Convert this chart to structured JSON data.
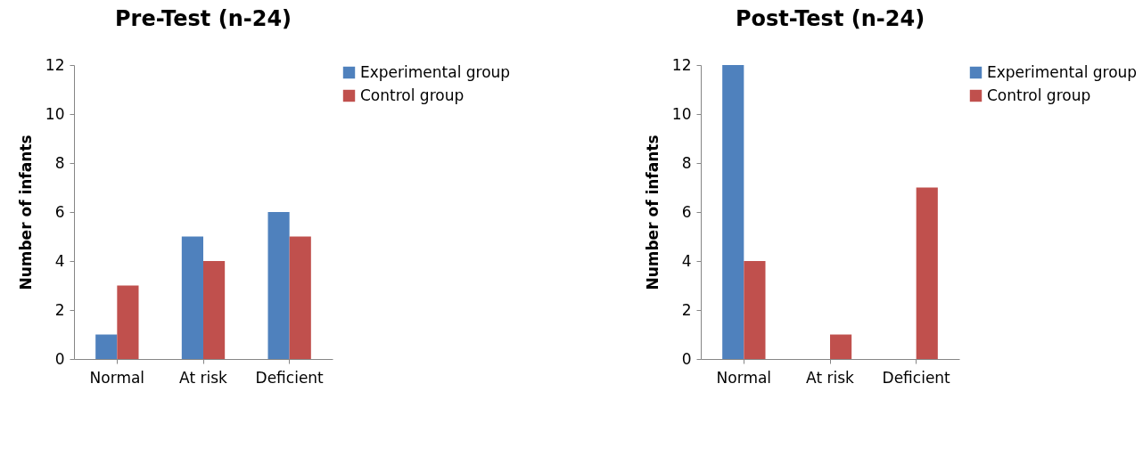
{
  "chart_data": [
    {
      "type": "bar",
      "title": "Pre-Test (n-24)",
      "ylabel": "Number of infants",
      "categories": [
        "Normal",
        "At risk",
        "Deficient"
      ],
      "series": [
        {
          "name": "Experimental group",
          "color": "#4f81bd",
          "values": [
            1,
            5,
            6
          ]
        },
        {
          "name": "Control group",
          "color": "#c0504d",
          "values": [
            3,
            4,
            5
          ]
        }
      ],
      "ylim": [
        0,
        12
      ],
      "yticks": [
        0,
        2,
        4,
        6,
        8,
        10,
        12
      ],
      "grid": false,
      "legend": "right"
    },
    {
      "type": "bar",
      "title": "Post-Test (n-24)",
      "ylabel": "Number of infants",
      "categories": [
        "Normal",
        "At risk",
        "Deficient"
      ],
      "series": [
        {
          "name": "Experimental group",
          "color": "#4f81bd",
          "values": [
            12,
            0,
            0
          ]
        },
        {
          "name": "Control group",
          "color": "#c0504d",
          "values": [
            4,
            1,
            7
          ]
        }
      ],
      "ylim": [
        0,
        12
      ],
      "yticks": [
        0,
        2,
        4,
        6,
        8,
        10,
        12
      ],
      "grid": false,
      "legend": "right"
    }
  ]
}
